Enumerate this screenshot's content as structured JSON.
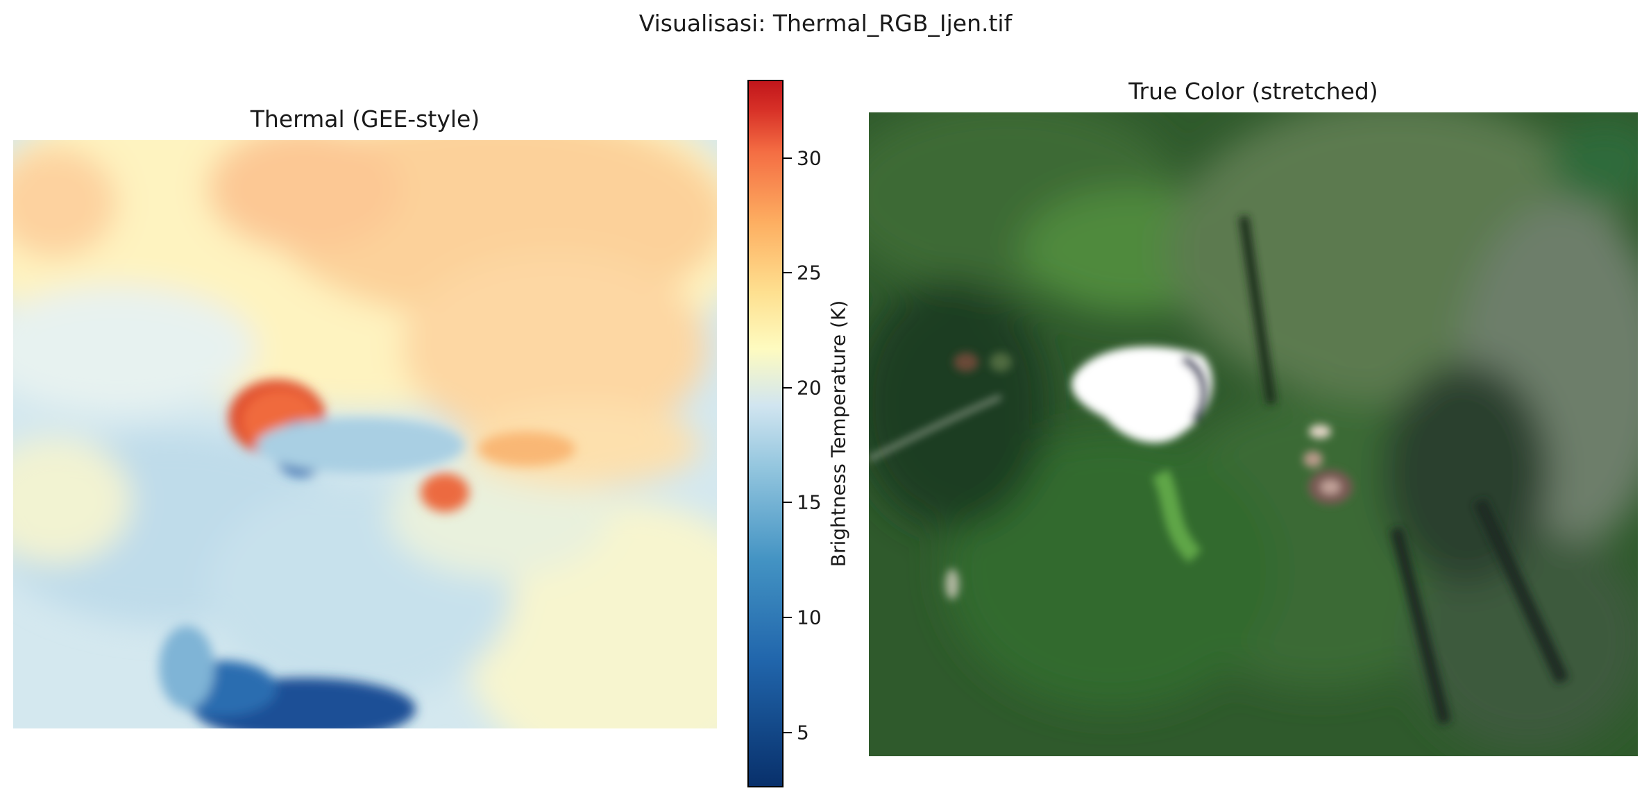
{
  "figure": {
    "suptitle": "Visualisasi: Thermal_RGB_Ijen.tif"
  },
  "chart_data": [
    {
      "type": "heatmap",
      "title": "Thermal (GEE-style)",
      "colormap": "RdYlBu_r",
      "colorbar": {
        "label": "Brightness Temperature (K)",
        "range": [
          2.6,
          33.4
        ],
        "ticks": [
          5,
          10,
          15,
          20,
          25,
          30
        ],
        "tick_labels": [
          "5",
          "10",
          "15",
          "20",
          "25",
          "30"
        ]
      },
      "axes": "off"
    },
    {
      "type": "image",
      "title": "True Color (stretched)",
      "axes": "off"
    }
  ]
}
